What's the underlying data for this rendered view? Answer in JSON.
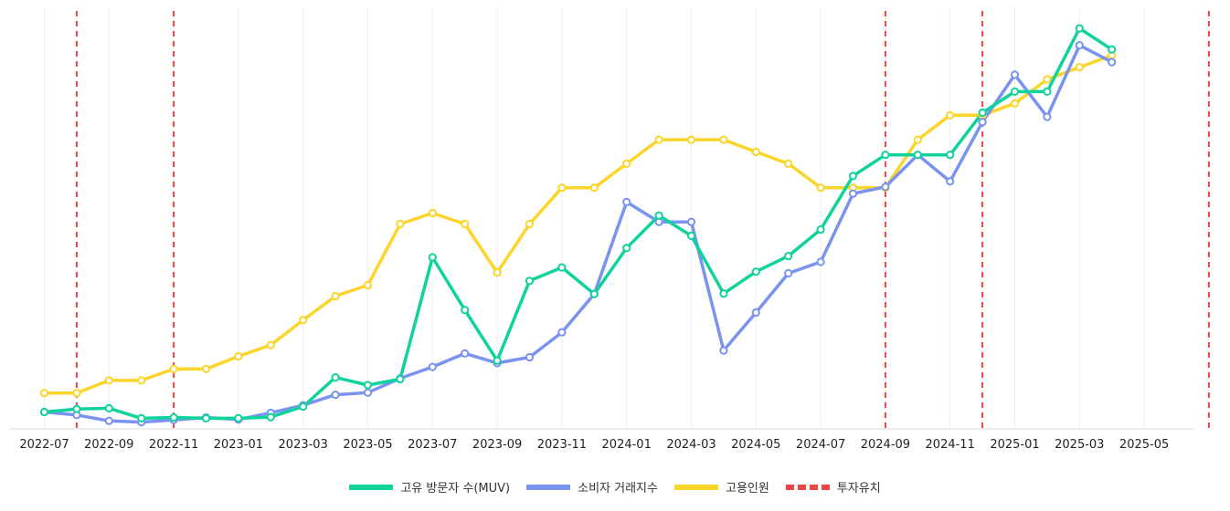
{
  "chart_data": {
    "type": "line",
    "x": [
      "2022-07",
      "2022-08",
      "2022-09",
      "2022-10",
      "2022-11",
      "2022-12",
      "2023-01",
      "2023-02",
      "2023-03",
      "2023-04",
      "2023-05",
      "2023-06",
      "2023-07",
      "2023-08",
      "2023-09",
      "2023-10",
      "2023-11",
      "2023-12",
      "2024-01",
      "2024-02",
      "2024-03",
      "2024-04",
      "2024-05",
      "2024-06",
      "2024-07",
      "2024-08",
      "2024-09",
      "2024-10",
      "2024-11",
      "2024-12",
      "2025-01",
      "2025-02",
      "2025-03",
      "2025-04"
    ],
    "tick_labels": [
      "2022-07",
      "2022-09",
      "2022-11",
      "2023-01",
      "2023-03",
      "2023-05",
      "2023-07",
      "2023-09",
      "2023-11",
      "2024-01",
      "2024-03",
      "2024-05",
      "2024-07",
      "2024-09",
      "2024-11",
      "2025-01",
      "2025-03",
      "2025-05"
    ],
    "x_range": [
      "2022-07",
      "2025-07"
    ],
    "ylim": [
      0,
      100
    ],
    "grid": "vertical",
    "legend_position": "bottom",
    "series": [
      {
        "name": "고유 방문자 수(MUV)",
        "color": "#10d39c",
        "values": [
          4.0,
          4.7,
          4.9,
          2.5,
          2.7,
          2.5,
          2.5,
          2.8,
          5.3,
          12.2,
          10.4,
          11.8,
          40.7,
          28.2,
          16.2,
          35.1,
          38.3,
          32.0,
          42.9,
          50.6,
          45.8,
          32.1,
          37.3,
          41.0,
          47.3,
          60.0,
          65.0,
          65.0,
          65.0,
          75.0,
          80.0,
          80.0,
          95.0,
          90.0
        ]
      },
      {
        "name": "소비자 거래지수",
        "color": "#7b93f0",
        "values": [
          4.0,
          3.3,
          1.9,
          1.6,
          2.1,
          2.7,
          2.2,
          3.8,
          5.6,
          8.1,
          8.6,
          12.0,
          14.7,
          17.9,
          15.6,
          17.0,
          22.9,
          32.0,
          53.8,
          49.1,
          49.1,
          18.6,
          27.6,
          36.9,
          39.6,
          55.8,
          57.4,
          65.0,
          58.7,
          72.8,
          84.0,
          74.0,
          91.0,
          87.0
        ]
      },
      {
        "name": "고용인원",
        "color": "#fcd52b",
        "values": [
          8.5,
          8.5,
          11.5,
          11.5,
          14.2,
          14.2,
          17.2,
          19.9,
          25.8,
          31.5,
          34.1,
          48.6,
          51.2,
          48.6,
          37.1,
          48.6,
          57.2,
          57.2,
          62.9,
          68.6,
          68.6,
          68.6,
          65.7,
          62.9,
          57.2,
          57.2,
          57.2,
          68.6,
          74.4,
          74.4,
          77.2,
          82.9,
          85.8,
          88.6
        ]
      }
    ],
    "investment": {
      "name": "투자유치",
      "color": "#ef4444",
      "dates": [
        "2022-08",
        "2022-11",
        "2024-09",
        "2024-12",
        "2025-07"
      ]
    }
  }
}
